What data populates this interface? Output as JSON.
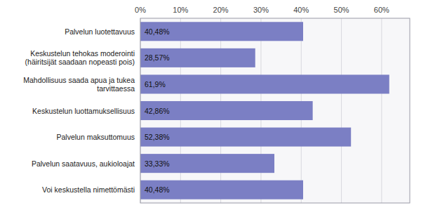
{
  "chart_data": {
    "type": "bar",
    "orientation": "horizontal",
    "categories": [
      "Palvelun luotettavuus",
      "Keskustelun tehokas moderointi\n(häiritsijät saadaan nopeasti pois)",
      "Mahdollisuus saada apua ja tukea\ntarvittaessa",
      "Keskustelun luottamuksellisuus",
      "Palvelun maksuttomuus",
      "Palvelun saatavuus, aukioloajat",
      "Voi keskustella nimettömästi"
    ],
    "values": [
      40.48,
      28.57,
      61.9,
      42.86,
      52.38,
      33.33,
      40.48
    ],
    "value_labels": [
      "40,48%",
      "28,57%",
      "61,9%",
      "42,86%",
      "52,38%",
      "33,33%",
      "40,48%"
    ],
    "data_labels": true,
    "color": "#7b7fc4",
    "xlim": [
      0,
      67
    ],
    "xticks": [
      {
        "value": 0,
        "label": "0%"
      },
      {
        "value": 10,
        "label": "10%"
      },
      {
        "value": 20,
        "label": "20%"
      },
      {
        "value": 30,
        "label": "30%"
      },
      {
        "value": 40,
        "label": "40%"
      },
      {
        "value": 50,
        "label": "50%"
      },
      {
        "value": 60,
        "label": "60%"
      }
    ],
    "grid": true
  }
}
